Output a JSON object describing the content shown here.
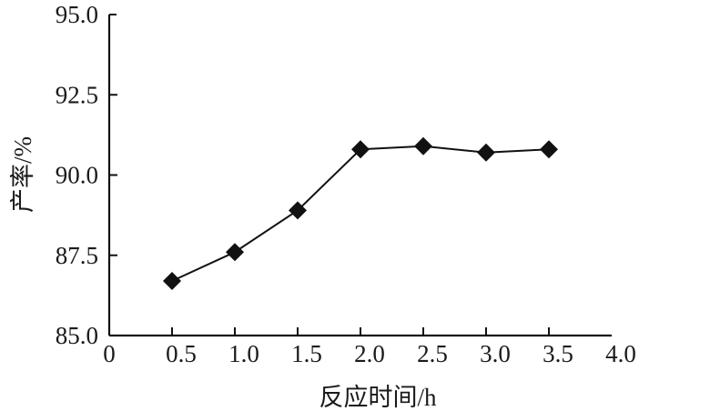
{
  "chart_data": {
    "type": "line",
    "title": "",
    "xlabel": "反应时间/h",
    "ylabel": "产率/%",
    "xlim": [
      0,
      4.0
    ],
    "ylim": [
      85.0,
      95.0
    ],
    "x_ticks": [
      "0",
      "0.5",
      "1.0",
      "1.5",
      "2.0",
      "2.5",
      "3.0",
      "3.5",
      "4.0"
    ],
    "y_ticks": [
      "85.0",
      "87.5",
      "90.0",
      "92.5",
      "95.0"
    ],
    "grid": false,
    "marker": "diamond",
    "color": "#111111",
    "series": [
      {
        "x": [
          0.5,
          1.0,
          1.5,
          2.0,
          2.5,
          3.0,
          3.5
        ],
        "values": [
          86.7,
          87.6,
          88.9,
          90.8,
          90.9,
          90.7,
          90.8
        ]
      }
    ]
  }
}
